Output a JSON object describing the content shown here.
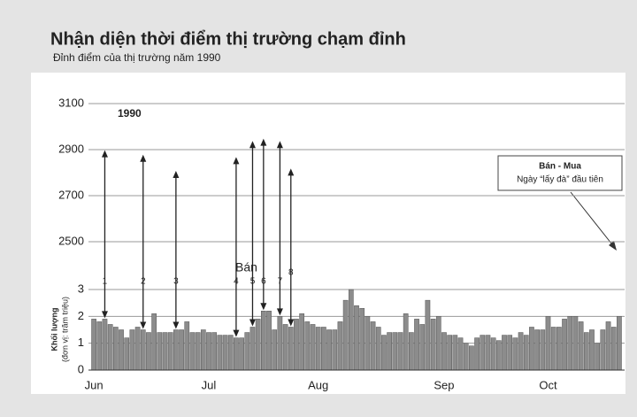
{
  "chart_data": {
    "type": "bar",
    "title": "Nhận diện thời điểm thị trường chạm đỉnh",
    "subtitle": "Đỉnh điểm của thị trường năm 1990",
    "year_label": "1990",
    "sell_label": "Bán",
    "note_title": "Bán - Mua",
    "note_text": "Ngày “lấy đà” đầu tiên",
    "ylabel": "Khối lượng",
    "ylabel_unit": "(đơn vị: trăm triệu)",
    "categories": [
      "Jun",
      null,
      null,
      null,
      null,
      null,
      null,
      null,
      null,
      null,
      null,
      null,
      null,
      null,
      null,
      null,
      null,
      null,
      null,
      null,
      null,
      "Jul",
      null,
      null,
      null,
      null,
      null,
      null,
      null,
      null,
      null,
      null,
      null,
      null,
      null,
      null,
      null,
      null,
      null,
      null,
      null,
      "Aug",
      null,
      null,
      null,
      null,
      null,
      null,
      null,
      null,
      null,
      null,
      null,
      null,
      null,
      null,
      null,
      null,
      null,
      null,
      null,
      null,
      null,
      null,
      "Sep",
      null,
      null,
      null,
      null,
      null,
      null,
      null,
      null,
      null,
      null,
      null,
      null,
      null,
      null,
      null,
      null,
      null,
      null,
      "Oct",
      null,
      null,
      null,
      null,
      null,
      null,
      null,
      null,
      null,
      null,
      null,
      null,
      null
    ],
    "values": [
      1.9,
      1.8,
      1.9,
      1.7,
      1.6,
      1.5,
      1.2,
      1.5,
      1.6,
      1.5,
      1.4,
      2.1,
      1.4,
      1.4,
      1.4,
      1.5,
      1.5,
      1.8,
      1.4,
      1.4,
      1.5,
      1.4,
      1.4,
      1.3,
      1.3,
      1.3,
      1.2,
      1.2,
      1.4,
      1.6,
      1.9,
      2.2,
      2.2,
      1.5,
      2.0,
      1.7,
      1.6,
      1.9,
      2.1,
      1.8,
      1.7,
      1.6,
      1.6,
      1.5,
      1.5,
      1.8,
      2.6,
      3.0,
      2.4,
      2.3,
      2.0,
      1.8,
      1.6,
      1.3,
      1.4,
      1.4,
      1.4,
      2.1,
      1.4,
      1.9,
      1.7,
      2.6,
      1.9,
      2.0,
      1.4,
      1.3,
      1.3,
      1.2,
      1.0,
      0.9,
      1.2,
      1.3,
      1.3,
      1.2,
      1.1,
      1.3,
      1.3,
      1.2,
      1.4,
      1.3,
      1.6,
      1.5,
      1.5,
      2.0,
      1.6,
      1.6,
      1.9,
      2.0,
      2.0,
      1.8,
      1.4,
      1.5,
      1.0,
      1.5,
      1.8,
      1.6,
      2.0
    ],
    "color": "#8c8c8c",
    "ylim": [
      0,
      3
    ],
    "yticks": [
      0,
      1,
      2,
      3
    ],
    "y2lim": [
      2500,
      3100
    ],
    "y2ticks": [
      2500,
      2700,
      2900,
      3100
    ],
    "annotations": [
      {
        "label": "1",
        "index": 2,
        "value": 2890
      },
      {
        "label": "2",
        "index": 9,
        "value": 2870
      },
      {
        "label": "3",
        "index": 15,
        "value": 2800
      },
      {
        "label": "4",
        "index": 26,
        "value": 2860
      },
      {
        "label": "5",
        "index": 29,
        "value": 2930
      },
      {
        "label": "6",
        "index": 31,
        "value": 2940
      },
      {
        "label": "7",
        "index": 34,
        "value": 2930
      },
      {
        "label": "8",
        "index": 36,
        "value": 2810
      }
    ],
    "grid": true
  }
}
